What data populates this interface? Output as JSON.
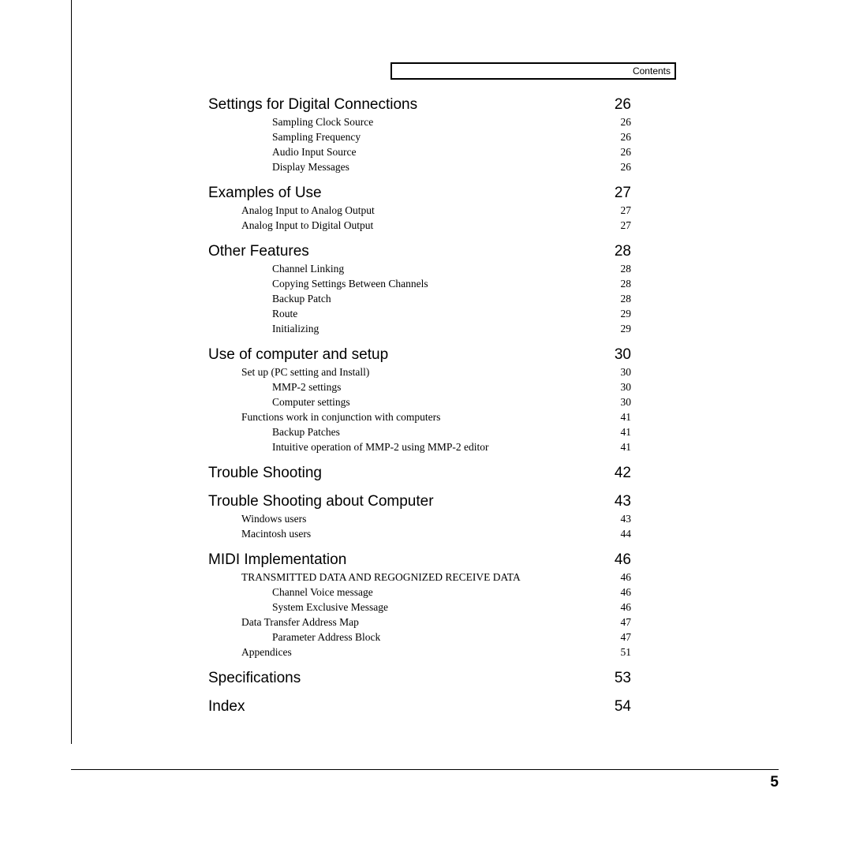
{
  "header_label": "Contents",
  "page_number": "5",
  "entries": [
    {
      "level": "section",
      "title": "Settings for Digital Connections",
      "page": "26"
    },
    {
      "level": "l2",
      "title": "Sampling Clock Source",
      "page": "26"
    },
    {
      "level": "l2",
      "title": "Sampling Frequency",
      "page": "26"
    },
    {
      "level": "l2",
      "title": "Audio Input Source",
      "page": "26"
    },
    {
      "level": "l2",
      "title": "Display Messages",
      "page": "26"
    },
    {
      "level": "section",
      "title": "Examples of Use",
      "page": "27"
    },
    {
      "level": "l1",
      "title": "Analog Input to Analog Output",
      "page": "27"
    },
    {
      "level": "l1",
      "title": "Analog Input to Digital Output",
      "page": "27"
    },
    {
      "level": "section",
      "title": "Other Features",
      "page": "28"
    },
    {
      "level": "l2",
      "title": "Channel Linking",
      "page": "28"
    },
    {
      "level": "l2",
      "title": "Copying Settings Between Channels",
      "page": "28"
    },
    {
      "level": "l2",
      "title": "Backup Patch",
      "page": "28"
    },
    {
      "level": "l2",
      "title": "Route",
      "page": "29"
    },
    {
      "level": "l2",
      "title": "Initializing",
      "page": "29"
    },
    {
      "level": "section",
      "title": "Use of computer and setup",
      "page": "30"
    },
    {
      "level": "l1",
      "title": "Set up (PC setting and Install)",
      "page": "30"
    },
    {
      "level": "l2",
      "title": "MMP-2 settings",
      "page": "30"
    },
    {
      "level": "l2",
      "title": "Computer settings",
      "page": "30"
    },
    {
      "level": "l1",
      "title": "Functions work in conjunction with computers",
      "page": "41"
    },
    {
      "level": "l2",
      "title": "Backup Patches",
      "page": "41"
    },
    {
      "level": "l2",
      "title": "Intuitive operation of MMP-2 using MMP-2 editor",
      "page": "41"
    },
    {
      "level": "section",
      "title": "Trouble Shooting",
      "page": "42"
    },
    {
      "level": "section",
      "title": "Trouble Shooting about Computer",
      "page": "43"
    },
    {
      "level": "l1",
      "title": "Windows users",
      "page": "43"
    },
    {
      "level": "l1",
      "title": "Macintosh users",
      "page": "44"
    },
    {
      "level": "section",
      "title": "MIDI Implementation",
      "page": "46"
    },
    {
      "level": "l1",
      "title": "TRANSMITTED DATA AND REGOGNIZED RECEIVE DATA",
      "page": "46"
    },
    {
      "level": "l2",
      "title": "Channel Voice message",
      "page": "46"
    },
    {
      "level": "l2",
      "title": "System Exclusive Message",
      "page": "46"
    },
    {
      "level": "l1",
      "title": "Data Transfer Address Map",
      "page": "47"
    },
    {
      "level": "l2",
      "title": "Parameter Address Block",
      "page": "47"
    },
    {
      "level": "l1",
      "title": "Appendices",
      "page": "51"
    },
    {
      "level": "section",
      "title": "Specifications",
      "page": "53"
    },
    {
      "level": "section",
      "title": "Index",
      "page": "54"
    }
  ]
}
